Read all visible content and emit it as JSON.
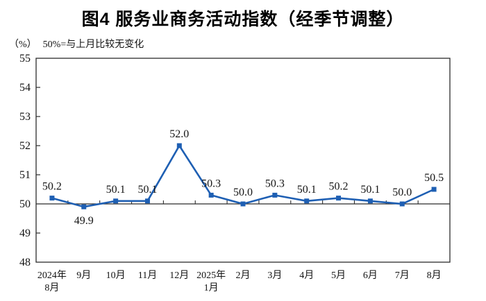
{
  "chart_data": {
    "type": "line",
    "title": "图4 服务业商务活动指数（经季节调整）",
    "unit_label": "（%）",
    "note": "50%=与上月比较无变化",
    "x_categories": [
      [
        "2024年",
        "8月"
      ],
      [
        "9月"
      ],
      [
        "10月"
      ],
      [
        "11月"
      ],
      [
        "12月"
      ],
      [
        "2025年",
        "1月"
      ],
      [
        "2月"
      ],
      [
        "3月"
      ],
      [
        "4月"
      ],
      [
        "5月"
      ],
      [
        "6月"
      ],
      [
        "7月"
      ],
      [
        "8月"
      ]
    ],
    "values": [
      50.2,
      49.9,
      50.1,
      50.1,
      52.0,
      50.3,
      50.0,
      50.3,
      50.1,
      50.2,
      50.1,
      50.0,
      50.5
    ],
    "data_labels": [
      "50.2",
      "49.9",
      "50.1",
      "50.1",
      "52.0",
      "50.3",
      "50.0",
      "50.3",
      "50.1",
      "50.2",
      "50.1",
      "50.0",
      "50.5"
    ],
    "ylim": [
      48,
      55
    ],
    "ytick_step": 1,
    "reference_value": 50,
    "grid": false,
    "legend": "none",
    "line_color": "#1E5FB3",
    "marker": "square",
    "axis_color": "#2B2B2B",
    "text_color": "#141414"
  }
}
